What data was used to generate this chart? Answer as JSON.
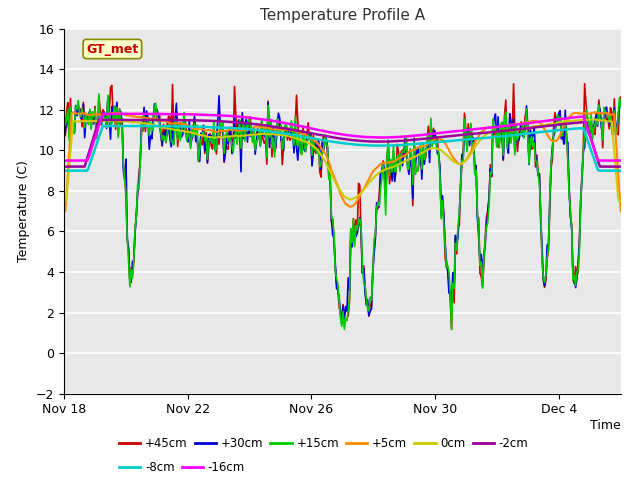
{
  "title": "Temperature Profile A",
  "xlabel": "Time",
  "ylabel": "Temperature (C)",
  "ylim": [
    -2,
    16
  ],
  "yticks": [
    -2,
    0,
    2,
    4,
    6,
    8,
    10,
    12,
    14,
    16
  ],
  "plot_bg": "#e8e8e8",
  "annotation_label": "GT_met",
  "annotation_color": "#cc0000",
  "annotation_bg": "#ffffcc",
  "annotation_edge": "#888800",
  "series": [
    {
      "label": "+45cm",
      "color": "#cc0000",
      "lw": 1.2
    },
    {
      "label": "+30cm",
      "color": "#0000dd",
      "lw": 1.2
    },
    {
      "label": "+15cm",
      "color": "#00cc00",
      "lw": 1.2
    },
    {
      "label": "+5cm",
      "color": "#ff8800",
      "lw": 1.5
    },
    {
      "label": "0cm",
      "color": "#cccc00",
      "lw": 1.5
    },
    {
      "label": "-2cm",
      "color": "#990099",
      "lw": 1.8
    },
    {
      "label": "-8cm",
      "color": "#00cccc",
      "lw": 1.8
    },
    {
      "label": "-16cm",
      "color": "#ff00ff",
      "lw": 1.8
    }
  ],
  "xtick_labels": [
    "Nov 18",
    "Nov 22",
    "Nov 26",
    "Nov 30",
    "Dec 4"
  ],
  "xtick_positions": [
    0,
    4,
    8,
    12,
    16
  ],
  "legend_rows": [
    [
      "+45cm",
      "+30cm",
      "+15cm",
      "+5cm",
      "0cm",
      "-2cm"
    ],
    [
      "-8cm",
      "-16cm"
    ]
  ]
}
